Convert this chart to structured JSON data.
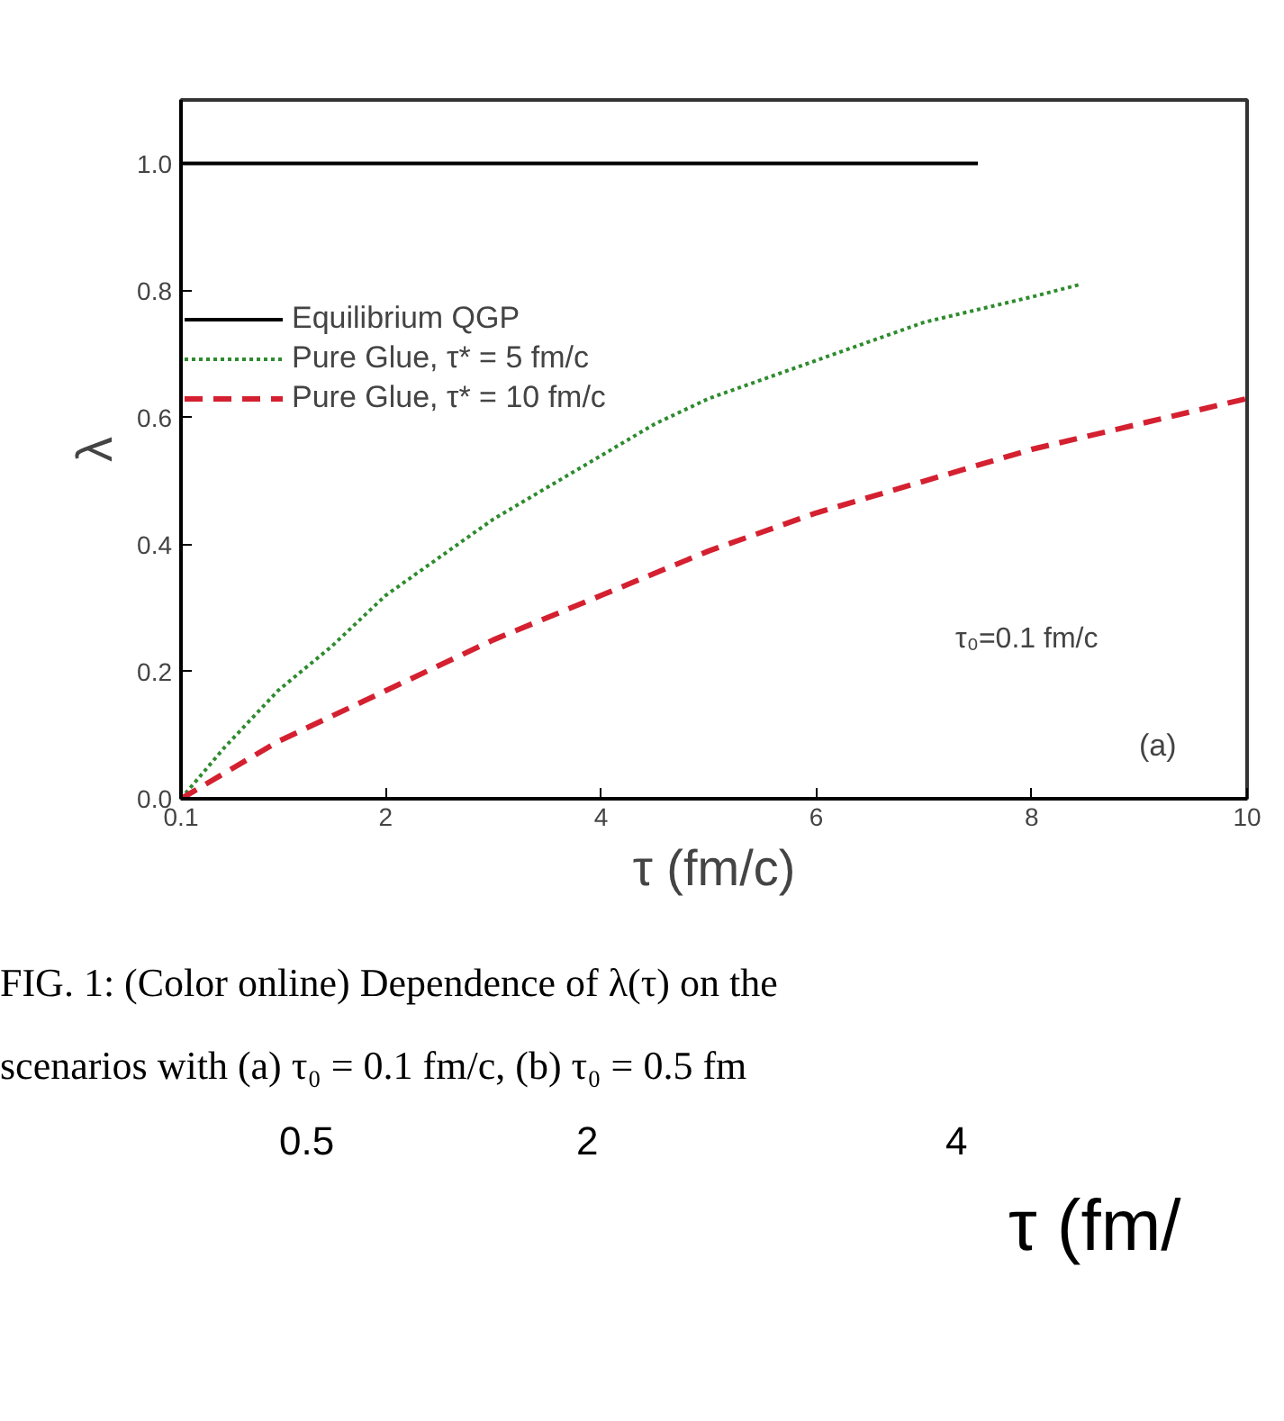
{
  "chart_data": {
    "type": "line",
    "xlabel": "τ (fm/c)",
    "ylabel": "λ",
    "xlim": [
      0.1,
      10
    ],
    "ylim": [
      0,
      1.1
    ],
    "xticks": [
      0.1,
      2,
      4,
      6,
      8,
      10
    ],
    "yticks": [
      {
        "value": 0,
        "label": "0.0"
      },
      0.2,
      0.4,
      0.6,
      0.8,
      {
        "value": 1,
        "label": "1.0"
      }
    ],
    "legend": "top left",
    "grid": false,
    "series": [
      {
        "name": "Equilibrium QGP",
        "color": "#000000",
        "line_style": "solid",
        "x": [
          0.1,
          7.5
        ],
        "values": [
          1.0,
          1.0
        ]
      },
      {
        "name": "Pure Glue, τ* = 5 fm/c",
        "color": "#2e8b2e",
        "line_style": "dotted",
        "x": [
          0.1,
          0.5,
          1,
          1.5,
          2,
          2.5,
          3,
          3.5,
          4,
          4.5,
          5,
          5.5,
          6,
          6.5,
          7,
          7.5,
          8,
          8.46
        ],
        "values": [
          0,
          0.08,
          0.17,
          0.24,
          0.32,
          0.38,
          0.44,
          0.49,
          0.54,
          0.59,
          0.63,
          0.66,
          0.69,
          0.72,
          0.75,
          0.77,
          0.79,
          0.81
        ]
      },
      {
        "name": "Pure Glue, τ* = 10 fm/c",
        "color": "#d42030",
        "line_style": "dashed",
        "x": [
          0.1,
          1,
          2,
          3,
          4,
          5,
          6,
          7,
          8,
          9,
          10
        ],
        "values": [
          0,
          0.09,
          0.17,
          0.25,
          0.32,
          0.39,
          0.45,
          0.5,
          0.55,
          0.59,
          0.63
        ]
      }
    ],
    "annotations": [
      "τ₀=0.1 fm/c",
      "(a)",
      "FIG. 1: (Color online) Dependence of λ(τ) on the",
      "scenarios with (a) τ₀ = 0.1 fm/c, (b) τ₀ = 0.5 fm",
      "0.5",
      "2",
      "4",
      "τ (fm/"
    ]
  }
}
